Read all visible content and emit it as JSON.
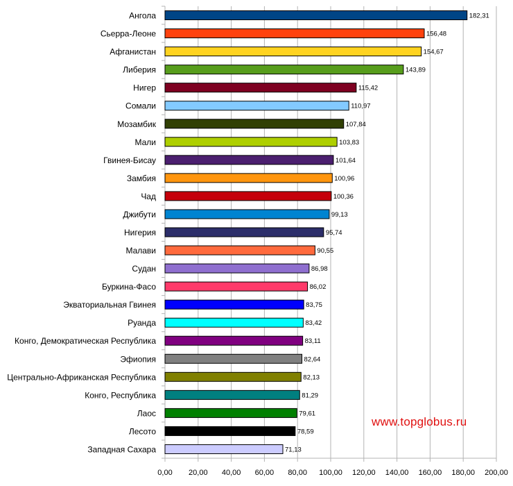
{
  "chart_data": {
    "type": "bar",
    "orientation": "horizontal",
    "categories": [
      "Ангола",
      "Сьерра-Леоне",
      "Афганистан",
      "Либерия",
      "Нигер",
      "Сомали",
      "Мозамбик",
      "Мали",
      "Гвинея-Бисау",
      "Замбия",
      "Чад",
      "Джибути",
      "Нигерия",
      "Малави",
      "Судан",
      "Буркина-Фасо",
      "Экваториальная Гвинея",
      "Руанда",
      "Конго, Демократическая Республика",
      "Эфиопия",
      "Центрально-Африканская Республика",
      "Конго, Республика",
      "Лаос",
      "Лесото",
      "Западная Сахара"
    ],
    "values": [
      182.31,
      156.48,
      154.67,
      143.89,
      115.42,
      110.97,
      107.84,
      103.83,
      101.64,
      100.96,
      100.36,
      99.13,
      95.74,
      90.55,
      86.98,
      86.02,
      83.75,
      83.42,
      83.11,
      82.64,
      82.13,
      81.29,
      79.61,
      78.59,
      71.13
    ],
    "value_labels": [
      "182,31",
      "156,48",
      "154,67",
      "143,89",
      "115,42",
      "110,97",
      "107,84",
      "103,83",
      "101,64",
      "100,96",
      "100,36",
      "99,13",
      "95,74",
      "90,55",
      "86,98",
      "86,02",
      "83,75",
      "83,42",
      "83,11",
      "82,64",
      "82,13",
      "81,29",
      "79,61",
      "78,59",
      "71,13"
    ],
    "colors": [
      "#004586",
      "#ff420e",
      "#ffd320",
      "#579d1c",
      "#7e0021",
      "#83caff",
      "#314004",
      "#aecf00",
      "#4b1f6f",
      "#ff950e",
      "#c5000b",
      "#0084d1",
      "#2c2e6a",
      "#ff6a3d",
      "#8f6fcf",
      "#ff3a6a",
      "#0000ff",
      "#00ffff",
      "#800080",
      "#808080",
      "#808000",
      "#008080",
      "#008000",
      "#000000",
      "#ccccff"
    ],
    "xlim": [
      0,
      200
    ],
    "xticks": [
      0,
      20,
      40,
      60,
      80,
      100,
      120,
      140,
      160,
      180,
      200
    ],
    "xtick_labels": [
      "0,00",
      "20,00",
      "40,00",
      "60,00",
      "80,00",
      "100,00",
      "120,00",
      "140,00",
      "160,00",
      "180,00",
      "200,00"
    ],
    "title": "",
    "xlabel": "",
    "ylabel": "",
    "grid": "vertical",
    "legend": "none"
  },
  "watermark": "www.topglobus.ru"
}
